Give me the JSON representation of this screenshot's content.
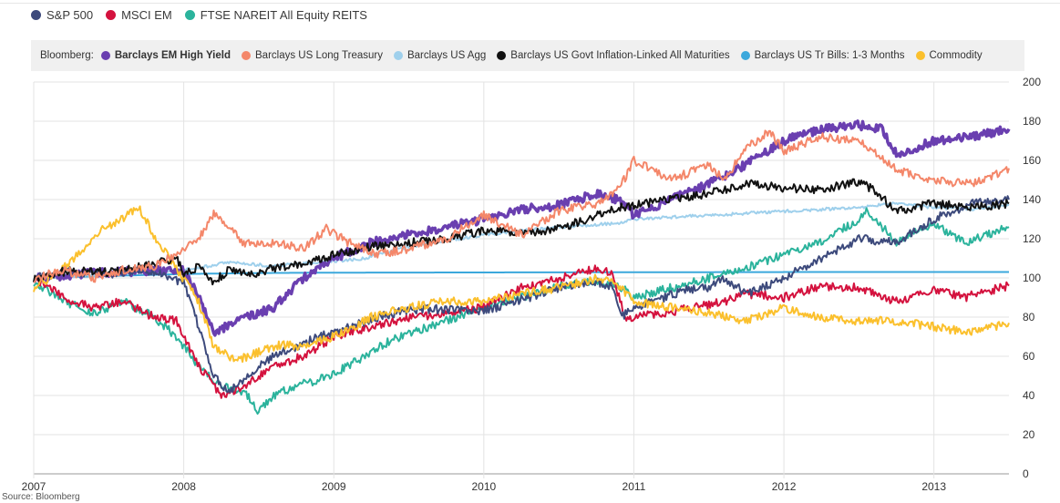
{
  "legend_primary": [
    {
      "name": "S&P 500",
      "color": "#3d4a7c"
    },
    {
      "name": "MSCI EM",
      "color": "#d4123e"
    },
    {
      "name": "FTSE NAREIT All Equity REITS",
      "color": "#2bb39c"
    }
  ],
  "legend_secondary_prefix": "Bloomberg:",
  "legend_secondary": [
    {
      "name": "Barclays EM High Yield",
      "color": "#6a3fb0",
      "bold": true
    },
    {
      "name": "Barclays US Long Treasury",
      "color": "#f4876a"
    },
    {
      "name": "Barclays US Agg",
      "color": "#9fd0ec"
    },
    {
      "name": "Barclays US Govt Inflation-Linked All Maturities",
      "color": "#111111"
    },
    {
      "name": "Barclays US Tr Bills: 1-3 Months",
      "color": "#3ba8dc"
    },
    {
      "name": "Commodity",
      "color": "#fbc02d"
    }
  ],
  "footnote": "Source: Bloomberg",
  "chart_data": {
    "type": "line",
    "x_ticks": [
      "2007",
      "2008",
      "2009",
      "2010",
      "2011",
      "2012",
      "2013"
    ],
    "xlim": [
      2007.0,
      2013.5
    ],
    "ylim": [
      0,
      200
    ],
    "y_ticks": [
      0,
      20,
      40,
      60,
      80,
      100,
      120,
      140,
      160,
      180,
      200
    ],
    "grid": true,
    "series": [
      {
        "name": "S&P 500",
        "color": "#3d4a7c",
        "width": 2,
        "x": [
          2007.0,
          2007.25,
          2007.5,
          2007.75,
          2007.9,
          2008.0,
          2008.1,
          2008.2,
          2008.3,
          2008.45,
          2008.6,
          2008.75,
          2008.9,
          2009.1,
          2009.3,
          2009.5,
          2009.75,
          2010.0,
          2010.3,
          2010.5,
          2010.75,
          2010.85,
          2010.92,
          2011.0,
          2011.2,
          2011.35,
          2011.5,
          2011.6,
          2011.75,
          2012.0,
          2012.25,
          2012.5,
          2012.75,
          2013.0,
          2013.25,
          2013.5
        ],
        "y": [
          100,
          103,
          102,
          104,
          101,
          97,
          75,
          50,
          42,
          52,
          60,
          65,
          70,
          75,
          80,
          84,
          84,
          83,
          90,
          95,
          98,
          96,
          80,
          85,
          90,
          94,
          95,
          100,
          92,
          100,
          110,
          120,
          118,
          130,
          138,
          140
        ]
      },
      {
        "name": "MSCI EM",
        "color": "#d4123e",
        "width": 2,
        "x": [
          2007.0,
          2007.2,
          2007.4,
          2007.6,
          2007.8,
          2007.95,
          2008.1,
          2008.25,
          2008.4,
          2008.6,
          2008.8,
          2009.0,
          2009.25,
          2009.5,
          2009.75,
          2010.0,
          2010.25,
          2010.5,
          2010.75,
          2010.85,
          2010.95,
          2011.0,
          2011.2,
          2011.4,
          2011.6,
          2011.75,
          2012.0,
          2012.25,
          2012.5,
          2012.75,
          2013.0,
          2013.2,
          2013.5
        ],
        "y": [
          100,
          90,
          85,
          88,
          80,
          78,
          55,
          40,
          45,
          55,
          60,
          70,
          75,
          80,
          82,
          85,
          95,
          100,
          105,
          103,
          78,
          80,
          82,
          85,
          88,
          92,
          90,
          96,
          95,
          88,
          94,
          90,
          96
        ]
      },
      {
        "name": "FTSE NAREIT All Equity REITS",
        "color": "#2bb39c",
        "width": 2,
        "x": [
          2007.0,
          2007.2,
          2007.4,
          2007.6,
          2007.8,
          2007.95,
          2008.1,
          2008.25,
          2008.4,
          2008.5,
          2008.6,
          2008.75,
          2008.9,
          2009.1,
          2009.3,
          2009.5,
          2009.75,
          2010.0,
          2010.25,
          2010.5,
          2010.75,
          2010.9,
          2011.0,
          2011.25,
          2011.5,
          2011.75,
          2012.0,
          2012.25,
          2012.5,
          2012.55,
          2012.75,
          2013.0,
          2013.2,
          2013.5
        ],
        "y": [
          98,
          88,
          82,
          88,
          80,
          70,
          55,
          45,
          42,
          32,
          40,
          45,
          48,
          55,
          65,
          72,
          78,
          85,
          90,
          96,
          98,
          96,
          90,
          95,
          100,
          105,
          112,
          118,
          130,
          135,
          118,
          128,
          118,
          126
        ]
      },
      {
        "name": "Barclays EM High Yield",
        "color": "#6a3fb0",
        "width": 3.5,
        "x": [
          2007.0,
          2007.3,
          2007.6,
          2007.9,
          2008.0,
          2008.1,
          2008.2,
          2008.35,
          2008.5,
          2008.6,
          2008.8,
          2009.0,
          2009.25,
          2009.5,
          2009.75,
          2010.0,
          2010.25,
          2010.5,
          2010.75,
          2010.9,
          2011.0,
          2011.25,
          2011.5,
          2011.75,
          2012.0,
          2012.25,
          2012.5,
          2012.65,
          2012.75,
          2013.0,
          2013.25,
          2013.5
        ],
        "y": [
          100,
          102,
          103,
          104,
          104,
          90,
          72,
          78,
          82,
          85,
          100,
          110,
          118,
          122,
          126,
          130,
          135,
          137,
          143,
          140,
          132,
          140,
          148,
          158,
          170,
          176,
          178,
          176,
          163,
          170,
          172,
          176
        ]
      },
      {
        "name": "Barclays US Long Treasury",
        "color": "#f4876a",
        "width": 2,
        "x": [
          2007.0,
          2007.2,
          2007.4,
          2007.6,
          2007.8,
          2007.95,
          2008.1,
          2008.2,
          2008.4,
          2008.6,
          2008.8,
          2008.95,
          2009.1,
          2009.3,
          2009.5,
          2009.75,
          2010.0,
          2010.25,
          2010.5,
          2010.75,
          2010.9,
          2011.0,
          2011.25,
          2011.5,
          2011.6,
          2011.75,
          2011.9,
          2012.0,
          2012.25,
          2012.5,
          2012.6,
          2012.75,
          2013.0,
          2013.25,
          2013.5
        ],
        "y": [
          100,
          104,
          100,
          104,
          106,
          112,
          120,
          133,
          118,
          118,
          115,
          125,
          118,
          112,
          115,
          120,
          132,
          122,
          134,
          138,
          145,
          160,
          150,
          158,
          150,
          166,
          175,
          165,
          172,
          170,
          165,
          155,
          150,
          148,
          156
        ]
      },
      {
        "name": "Barclays US Agg",
        "color": "#9fd0ec",
        "width": 2,
        "x": [
          2007.0,
          2007.5,
          2008.0,
          2008.3,
          2008.6,
          2008.9,
          2009.2,
          2009.5,
          2009.75,
          2010.0,
          2010.5,
          2010.9,
          2011.0,
          2011.5,
          2012.0,
          2012.5,
          2012.75,
          2013.0,
          2013.25,
          2013.5
        ],
        "y": [
          100,
          102,
          104,
          108,
          106,
          108,
          110,
          116,
          119,
          122,
          126,
          128,
          130,
          132,
          134,
          136,
          138,
          136,
          135,
          137
        ]
      },
      {
        "name": "Barclays US Govt Inflation-Linked All Maturities",
        "color": "#111111",
        "width": 2,
        "x": [
          2007.0,
          2007.25,
          2007.5,
          2007.75,
          2007.95,
          2008.0,
          2008.1,
          2008.2,
          2008.3,
          2008.45,
          2008.6,
          2008.8,
          2009.0,
          2009.25,
          2009.5,
          2009.75,
          2010.0,
          2010.25,
          2010.5,
          2010.75,
          2010.9,
          2011.0,
          2011.25,
          2011.5,
          2011.75,
          2012.0,
          2012.25,
          2012.5,
          2012.6,
          2012.75,
          2013.0,
          2013.25,
          2013.5
        ],
        "y": [
          100,
          104,
          103,
          106,
          110,
          102,
          106,
          98,
          104,
          102,
          105,
          107,
          112,
          116,
          118,
          120,
          124,
          123,
          125,
          132,
          136,
          137,
          140,
          143,
          148,
          146,
          145,
          149,
          145,
          134,
          138,
          136,
          138
        ]
      },
      {
        "name": "Barclays US Tr Bills: 1-3 Months",
        "color": "#3ba8dc",
        "width": 2,
        "x": [
          2007.0,
          2007.5,
          2008.0,
          2008.5,
          2009.0,
          2010.0,
          2011.0,
          2012.0,
          2013.0,
          2013.5
        ],
        "y": [
          100,
          101,
          102,
          102.5,
          102.7,
          102.8,
          102.9,
          103,
          103,
          103
        ]
      },
      {
        "name": "Commodity",
        "color": "#fbc02d",
        "width": 2,
        "x": [
          2007.0,
          2007.15,
          2007.3,
          2007.45,
          2007.55,
          2007.7,
          2007.8,
          2007.95,
          2008.1,
          2008.2,
          2008.35,
          2008.5,
          2008.65,
          2008.8,
          2009.0,
          2009.25,
          2009.5,
          2009.75,
          2010.0,
          2010.25,
          2010.5,
          2010.75,
          2010.9,
          2011.0,
          2011.25,
          2011.5,
          2011.75,
          2012.0,
          2012.25,
          2012.5,
          2012.75,
          2013.0,
          2013.25,
          2013.5
        ],
        "y": [
          95,
          102,
          112,
          125,
          128,
          136,
          122,
          105,
          88,
          65,
          58,
          62,
          66,
          65,
          70,
          80,
          85,
          88,
          88,
          92,
          95,
          100,
          96,
          88,
          85,
          82,
          78,
          85,
          80,
          78,
          78,
          75,
          72,
          77
        ]
      }
    ]
  }
}
